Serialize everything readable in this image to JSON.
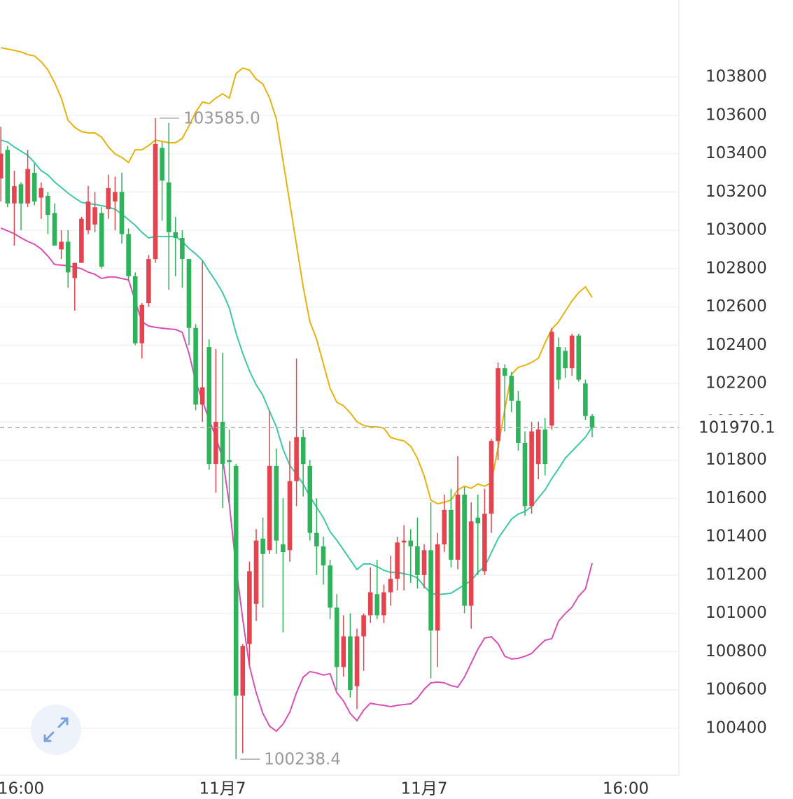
{
  "chart_data": {
    "type": "candlestick",
    "up_color": "#e5444f",
    "down_color": "#2eb35a",
    "categories": [
      null,
      null,
      null,
      "16:00",
      null,
      null,
      null,
      null,
      null,
      null,
      null,
      null,
      null,
      null,
      null,
      null,
      null,
      null,
      null,
      null,
      null,
      null,
      null,
      null,
      null,
      null,
      null,
      null,
      null,
      null,
      null,
      null,
      null,
      "11月7",
      null,
      null,
      null,
      null,
      null,
      null,
      null,
      null,
      null,
      null,
      null,
      null,
      null,
      null,
      null,
      null,
      null,
      null,
      null,
      null,
      null,
      null,
      null,
      null,
      null,
      null,
      null,
      null,
      null,
      "11月7",
      null,
      null,
      null,
      null,
      null,
      null,
      null,
      null,
      null,
      null,
      null,
      null,
      null,
      null,
      null,
      null,
      null,
      null,
      null,
      null,
      null,
      null,
      null,
      null,
      null,
      null,
      null,
      null,
      null,
      "16:00",
      null
    ],
    "open": [
      103270,
      103420,
      103140,
      103240,
      103140,
      103300,
      103170,
      103180,
      103090,
      102900,
      102940,
      102750,
      102830,
      103000,
      103030,
      103090,
      103110,
      103150,
      103200,
      102980,
      102760,
      102410,
      102620,
      102850,
      103430,
      103250,
      102990,
      102960,
      102850,
      102490,
      102090,
      102390,
      101780,
      102000,
      101800,
      101770,
      100570,
      100840,
      101050,
      101390,
      101330,
      101770,
      101360,
      101330,
      101690,
      101920,
      101770,
      101420,
      101350,
      101250,
      101030,
      100720,
      100880,
      100620,
      100880,
      100990,
      101100,
      100990,
      101110,
      101180,
      101370,
      101380,
      101350,
      101200,
      101330,
      100910,
      101360,
      101540,
      101280,
      101620,
      101040,
      101500,
      101220,
      101520,
      101900,
      102280,
      102240,
      102110,
      101890,
      101560,
      101780,
      101960,
      101980,
      102390,
      102370,
      102280,
      102450,
      102200,
      102030,
      null,
      null,
      null,
      null,
      null,
      null
    ],
    "high": [
      103540,
      103440,
      103310,
      103250,
      103420,
      103350,
      103250,
      103200,
      103140,
      103000,
      103000,
      102830,
      103070,
      103230,
      103200,
      103120,
      103290,
      103280,
      103300,
      103010,
      102780,
      102620,
      102870,
      103585,
      103460,
      103560,
      103070,
      103000,
      102850,
      102510,
      102840,
      102430,
      102380,
      102360,
      101960,
      101780,
      100840,
      101270,
      101440,
      101500,
      102060,
      101860,
      101600,
      101900,
      102330,
      101960,
      101800,
      101600,
      101400,
      101280,
      101100,
      100990,
      101000,
      100920,
      101000,
      101240,
      101280,
      101150,
      101300,
      101400,
      101460,
      101440,
      101500,
      101360,
      101580,
      101420,
      101620,
      101650,
      101820,
      101660,
      101580,
      101620,
      101650,
      101910,
      102310,
      102300,
      102260,
      102160,
      101950,
      102000,
      102000,
      102020,
      102490,
      102440,
      102390,
      102460,
      102460,
      102220,
      102040,
      null,
      null,
      null,
      null,
      null,
      null
    ],
    "low": [
      103150,
      103120,
      102920,
      103000,
      103120,
      103130,
      103060,
      102980,
      102920,
      102850,
      102700,
      102580,
      102830,
      102980,
      102990,
      102800,
      103060,
      103000,
      102930,
      102740,
      102400,
      102330,
      102600,
      102830,
      103050,
      102690,
      102760,
      102700,
      102400,
      102060,
      102000,
      101750,
      101630,
      101550,
      101580,
      100238.4,
      100270,
      100730,
      100960,
      101030,
      101310,
      101310,
      100900,
      101270,
      101560,
      101610,
      101380,
      101200,
      101150,
      100970,
      100600,
      100670,
      100560,
      100500,
      100700,
      100950,
      100970,
      100950,
      101040,
      101120,
      101120,
      101160,
      101130,
      101130,
      100660,
      100720,
      101320,
      101240,
      101230,
      101000,
      100920,
      101200,
      101200,
      101420,
      101800,
      101950,
      102050,
      101850,
      101510,
      101520,
      101700,
      101720,
      101960,
      102170,
      102230,
      102240,
      102210,
      102010,
      101920,
      null,
      null,
      null,
      null,
      null,
      null
    ],
    "close": [
      103400,
      103140,
      103230,
      103140,
      103320,
      103150,
      103220,
      103080,
      102920,
      102940,
      102780,
      102830,
      103060,
      103150,
      103120,
      102810,
      103220,
      103200,
      102980,
      102760,
      102410,
      102610,
      102850,
      103450,
      103260,
      102990,
      102960,
      102850,
      102490,
      102090,
      102180,
      101780,
      102000,
      101780,
      101790,
      100570,
      100830,
      101220,
      101380,
      101310,
      101770,
      101380,
      101320,
      101690,
      101920,
      101780,
      101420,
      101350,
      101250,
      101030,
      100720,
      100880,
      100600,
      100880,
      100990,
      101110,
      100990,
      101110,
      101180,
      101370,
      101380,
      101350,
      101200,
      101330,
      100910,
      101360,
      101540,
      101280,
      101620,
      101040,
      101480,
      101470,
      101520,
      101900,
      102280,
      102240,
      102110,
      101890,
      101560,
      101950,
      101960,
      101780,
      102470,
      102220,
      102280,
      102450,
      102220,
      102030,
      101970.1,
      null,
      null,
      null,
      null,
      null,
      null
    ],
    "series": [
      {
        "color": "#e8b20f",
        "values": [
          103953,
          103946,
          103939,
          103931,
          103917,
          103910,
          103880,
          103837,
          103771,
          103690,
          103574,
          103537,
          103515,
          103508,
          103508,
          103486,
          103435,
          103398,
          103380,
          103354,
          103420,
          103420,
          103442,
          103471,
          103464,
          103457,
          103457,
          103479,
          103544,
          103617,
          103669,
          103661,
          103690,
          103712,
          103690,
          103818,
          103847,
          103836,
          103789,
          103763,
          103690,
          103581,
          103362,
          103143,
          102924,
          102704,
          102522,
          102430,
          102303,
          102175,
          102102,
          102084,
          102047,
          102000,
          101981,
          101974,
          101974,
          101967,
          101919,
          101908,
          101901,
          101872,
          101810,
          101718,
          101591,
          101572,
          101580,
          101591,
          101645,
          101664,
          101653,
          101675,
          101664,
          101682,
          101865,
          102065,
          102248,
          102284,
          102295,
          102310,
          102332,
          102412,
          102485,
          102522,
          102577,
          102631,
          102675,
          102704,
          102650,
          null,
          null,
          null,
          null,
          null,
          null
        ]
      },
      {
        "color": "#3cc9a8",
        "values": [
          103471,
          103460,
          103435,
          103413,
          103391,
          103354,
          103311,
          103289,
          103252,
          103223,
          103194,
          103168,
          103146,
          103139,
          103135,
          103128,
          103121,
          103110,
          103084,
          103055,
          103026,
          102989,
          102960,
          102967,
          102967,
          102967,
          102967,
          102942,
          102905,
          102876,
          102843,
          102785,
          102734,
          102675,
          102595,
          102463,
          102357,
          102266,
          102193,
          102138,
          102054,
          101974,
          101857,
          101773,
          101726,
          101675,
          101609,
          101554,
          101499,
          101426,
          101382,
          101331,
          101280,
          101229,
          101258,
          101258,
          101244,
          101225,
          101214,
          101214,
          101207,
          101200,
          101185,
          101141,
          101105,
          101098,
          101101,
          101105,
          101127,
          101149,
          101171,
          101214,
          101244,
          101317,
          101390,
          101441,
          101492,
          101518,
          101532,
          101558,
          101602,
          101645,
          101704,
          101755,
          101810,
          101846,
          101883,
          101919,
          101974,
          null,
          null,
          null,
          null,
          null,
          null
        ]
      },
      {
        "color": "#d94fb6",
        "values": [
          103011,
          102997,
          102982,
          102960,
          102942,
          102927,
          102902,
          102865,
          102821,
          102818,
          102814,
          102807,
          102799,
          102781,
          102770,
          102748,
          102756,
          102756,
          102748,
          102741,
          102631,
          102522,
          102500,
          102493,
          102489,
          102485,
          102482,
          102467,
          102357,
          102211,
          102109,
          102011,
          101919,
          101810,
          101572,
          101244,
          100970,
          100725,
          100586,
          100477,
          100411,
          100385,
          100422,
          100484,
          100586,
          100667,
          100696,
          100689,
          100678,
          100685,
          100586,
          100542,
          100477,
          100440,
          100495,
          100531,
          100524,
          100520,
          100513,
          100520,
          100524,
          100528,
          100557,
          100604,
          100637,
          100641,
          100637,
          100623,
          100615,
          100667,
          100740,
          100813,
          100871,
          100878,
          100842,
          100776,
          100762,
          100765,
          100776,
          100791,
          100827,
          100860,
          100868,
          100959,
          100999,
          101032,
          101090,
          101127,
          101262,
          null,
          null,
          null,
          null,
          null,
          null
        ]
      }
    ],
    "ylim": [
      100155,
      104202
    ],
    "yticks": [
      100400,
      100600,
      100800,
      101000,
      101200,
      101400,
      101600,
      101800,
      102000,
      102200,
      102400,
      102600,
      102800,
      103000,
      103200,
      103400,
      103600,
      103800
    ],
    "grid": true,
    "last_price": 101970.1,
    "high_label": {
      "value": 103585,
      "label": "103585.0"
    },
    "low_label": {
      "value": 100238.4,
      "label": "100238.4"
    }
  }
}
